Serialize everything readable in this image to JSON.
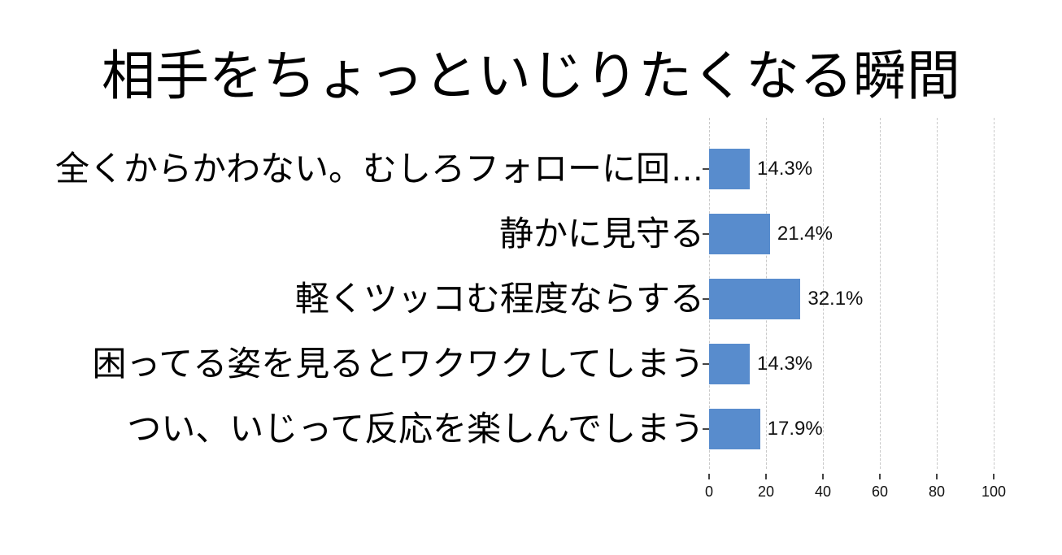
{
  "chart_data": {
    "type": "bar",
    "orientation": "horizontal",
    "title": "相手をちょっといじりたくなる瞬間",
    "categories": [
      "全くからかわない。むしろフォローに回…",
      "静かに見守る",
      "軽くツッコむ程度ならする",
      "困ってる姿を見るとワクワクしてしまう",
      "つい、いじって反応を楽しんでしまう"
    ],
    "values": [
      14.3,
      21.4,
      32.1,
      14.3,
      17.9
    ],
    "value_labels": [
      "14.3%",
      "21.4%",
      "32.1%",
      "14.3%",
      "17.9%"
    ],
    "xlabel": "",
    "ylabel": "",
    "xlim": [
      0,
      100
    ],
    "xticks": [
      0,
      20,
      40,
      60,
      80,
      100
    ],
    "grid": "vertical-dashed",
    "legend": "none",
    "bar_color": "#588CCD",
    "grid_color": "#C9C9C9",
    "tick_color": "#444444",
    "text_color": "#000000",
    "background_color": "#FFFFFF"
  }
}
